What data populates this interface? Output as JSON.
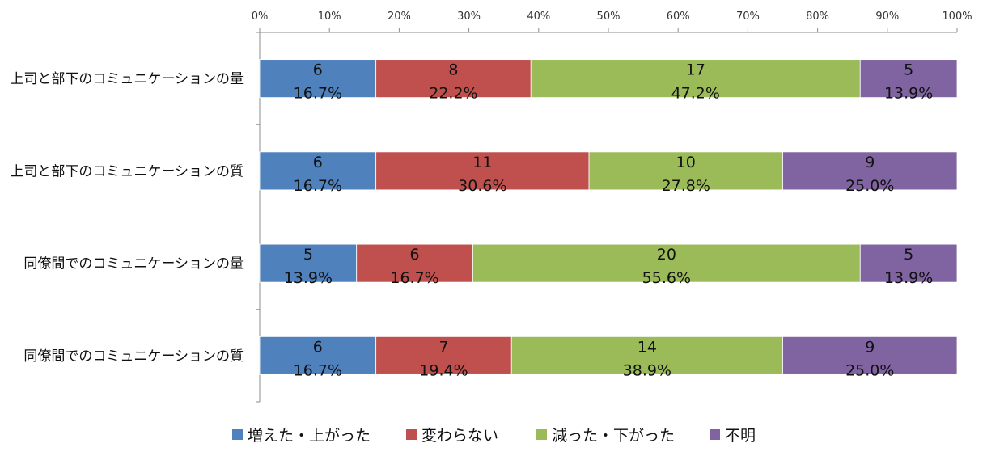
{
  "chart_data": {
    "type": "bar",
    "orientation": "horizontal",
    "stacked": "percent",
    "categories": [
      "上司と部下のコミュニケーションの量",
      "上司と部下のコミュニケーションの質",
      "同僚間でのコミュニケーションの量",
      "同僚間でのコミュニケーションの質"
    ],
    "series": [
      {
        "name": "増えた・上がった",
        "color": "#4F81BD",
        "values": [
          6,
          6,
          5,
          6
        ],
        "percent_labels": [
          "16.7%",
          "16.7%",
          "13.9%",
          "16.7%"
        ]
      },
      {
        "name": "変わらない",
        "color": "#C0504D",
        "values": [
          8,
          11,
          6,
          7
        ],
        "percent_labels": [
          "22.2%",
          "30.6%",
          "16.7%",
          "19.4%"
        ]
      },
      {
        "name": "減った・下がった",
        "color": "#9BBB59",
        "values": [
          17,
          10,
          20,
          14
        ],
        "percent_labels": [
          "47.2%",
          "27.8%",
          "55.6%",
          "38.9%"
        ]
      },
      {
        "name": "不明",
        "color": "#8064A2",
        "values": [
          5,
          9,
          5,
          9
        ],
        "percent_labels": [
          "13.9%",
          "25.0%",
          "13.9%",
          "25.0%"
        ]
      }
    ],
    "x_ticks": [
      "0%",
      "10%",
      "20%",
      "30%",
      "40%",
      "50%",
      "60%",
      "70%",
      "80%",
      "90%",
      "100%"
    ],
    "xlim": [
      0,
      100
    ],
    "x_axis_position": "top",
    "grid": false,
    "legend_position": "bottom"
  }
}
